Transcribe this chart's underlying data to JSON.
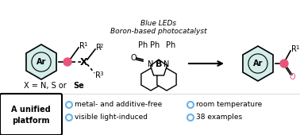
{
  "bg_color": "#ffffff",
  "border_color": "#000000",
  "ring_fill": "#d4ede8",
  "ring_stroke": "#000000",
  "arrow_color": "#000000",
  "pink_color": "#e8547a",
  "blue_dot_color": "#6ab4e8",
  "text_color": "#000000",
  "box_color": "#000000",
  "title": "",
  "bullet_items": [
    "metal- and additive-free",
    "visible light-induced",
    "room temperature",
    "38 examples"
  ],
  "box_label_line1": "A unified",
  "box_label_line2": "platform",
  "x_label": "X = N, S or Se",
  "catalyst_line1": "Boron-based photocatalyst",
  "catalyst_line2": "Blue LEDs",
  "figsize": [
    3.78,
    1.7
  ],
  "dpi": 100
}
